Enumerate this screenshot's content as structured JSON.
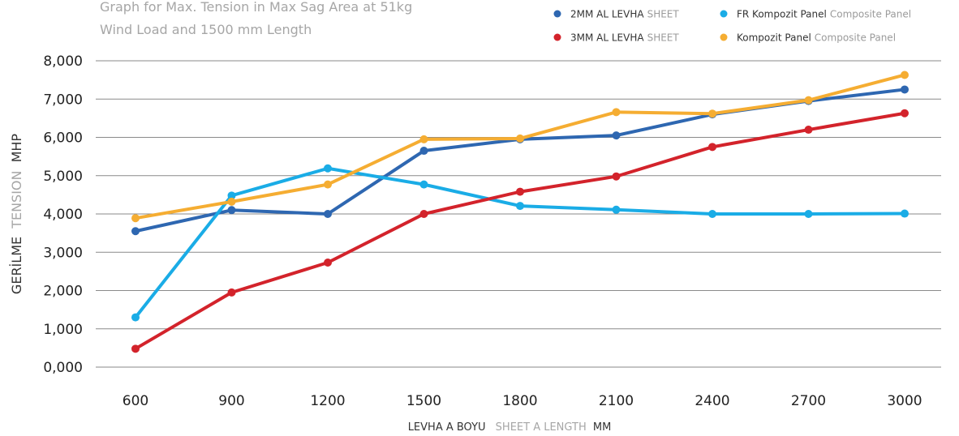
{
  "chart_data": {
    "type": "line",
    "title_lines": [
      "Graph for Max. Tension in Max Sag Area at 51kg",
      "Wind Load and 1500 mm Length"
    ],
    "xlabel": {
      "primary": "LEVHA A BOYU",
      "secondary": "SHEET A LENGTH",
      "unit": "MM"
    },
    "ylabel": {
      "primary": "GERİLME",
      "secondary": "TENSION",
      "unit": "MHP"
    },
    "categories": [
      "600",
      "900",
      "1200",
      "1500",
      "1800",
      "2100",
      "2400",
      "2700",
      "3000"
    ],
    "y_ticks": [
      "0,000",
      "1,000",
      "2,000",
      "3,000",
      "4,000",
      "5,000",
      "6,000",
      "7,000",
      "8,000"
    ],
    "ylim": [
      0,
      8000
    ],
    "grid": true,
    "legend_position": "top-right",
    "series": [
      {
        "name": "2MM AL LEVHA",
        "name_secondary": "SHEET",
        "color": "#2e67b1",
        "values": [
          3550,
          4100,
          4000,
          5650,
          5950,
          6050,
          6600,
          6950,
          7250
        ]
      },
      {
        "name": "FR Kompozit Panel",
        "name_secondary": "Composite Panel",
        "color": "#1aace6",
        "values": [
          1300,
          4480,
          5190,
          4770,
          4210,
          4110,
          4000,
          4000,
          4010
        ]
      },
      {
        "name": "3MM AL LEVHA",
        "name_secondary": "SHEET",
        "color": "#d3232b",
        "values": [
          480,
          1950,
          2730,
          4000,
          4580,
          4980,
          5750,
          6200,
          6630
        ]
      },
      {
        "name": "Kompozit Panel",
        "name_secondary": "Composite Panel",
        "color": "#f5ad32",
        "values": [
          3890,
          4320,
          4770,
          5950,
          5970,
          6660,
          6620,
          6970,
          7630
        ]
      }
    ],
    "legend_colors": {
      "primary_text": "#333333",
      "secondary_text": "#9b9b9b"
    }
  }
}
